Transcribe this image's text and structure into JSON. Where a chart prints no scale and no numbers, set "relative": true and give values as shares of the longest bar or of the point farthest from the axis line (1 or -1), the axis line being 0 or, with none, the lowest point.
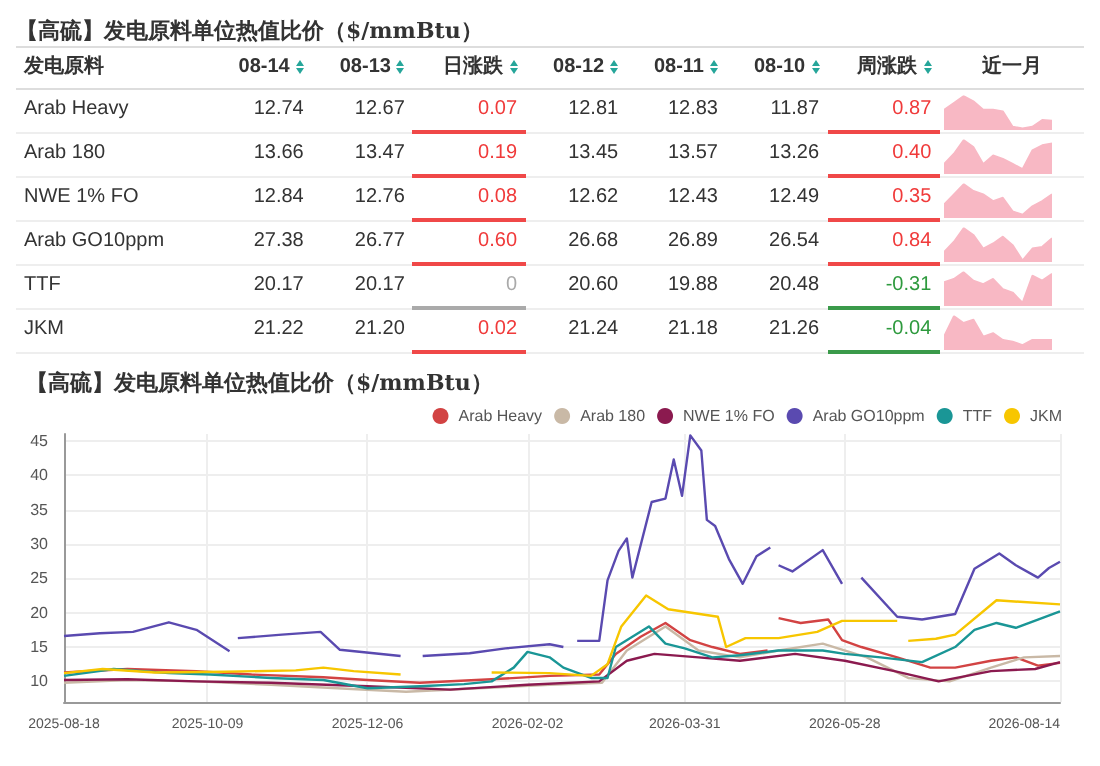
{
  "chart_data": [
    {
      "type": "other",
      "title": "【高硫】发电原料单位热值比价（$/mmBtu）",
      "categories": [
        "发电原料",
        "08-14",
        "08-13",
        "日涨跌",
        "08-12",
        "08-11",
        "08-10",
        "周涨跌",
        "近一月"
      ],
      "y_categories": [
        "Arab Heavy",
        "Arab 180",
        "NWE 1% FO",
        "Arab GO10ppm",
        "TTF",
        "JKM"
      ],
      "cell_labels": [
        [
          "12.74",
          "12.67",
          "0.07",
          "12.81",
          "12.83",
          "11.87",
          "0.87"
        ],
        [
          "13.66",
          "13.47",
          "0.19",
          "13.45",
          "13.57",
          "13.26",
          "0.40"
        ],
        [
          "12.84",
          "12.76",
          "0.08",
          "12.62",
          "12.43",
          "12.49",
          "0.35"
        ],
        [
          "27.38",
          "26.77",
          "0.60",
          "26.68",
          "26.89",
          "26.54",
          "0.84"
        ],
        [
          "20.17",
          "20.17",
          "0",
          "20.60",
          "19.88",
          "20.48",
          "-0.31"
        ],
        [
          "21.22",
          "21.20",
          "0.02",
          "21.24",
          "21.18",
          "21.26",
          "-0.04"
        ]
      ]
    },
    {
      "type": "area",
      "relative": true,
      "color": "#f8b8c4",
      "categories": [
        null,
        null,
        null,
        null,
        null,
        null,
        null,
        null,
        null,
        null,
        null,
        null
      ],
      "values": [
        0.6,
        0.8,
        1,
        0.85,
        0.6,
        0.6,
        0.55,
        0.1,
        0.05,
        0.1,
        0.3,
        0.28
      ]
    },
    {
      "type": "area",
      "relative": true,
      "color": "#f8b8c4",
      "categories": [
        null,
        null,
        null,
        null,
        null,
        null,
        null,
        null,
        null,
        null,
        null,
        null
      ],
      "values": [
        0.3,
        0.6,
        1,
        0.8,
        0.3,
        0.55,
        0.45,
        0.3,
        0.15,
        0.7,
        0.85,
        0.9
      ]
    },
    {
      "type": "area",
      "relative": true,
      "color": "#f8b8c4",
      "categories": [
        null,
        null,
        null,
        null,
        null,
        null,
        null,
        null,
        null,
        null,
        null,
        null
      ],
      "values": [
        0.4,
        0.7,
        1,
        0.8,
        0.7,
        0.5,
        0.6,
        0.2,
        0.1,
        0.35,
        0.5,
        0.7
      ]
    },
    {
      "type": "area",
      "relative": true,
      "color": "#f8b8c4",
      "categories": [
        null,
        null,
        null,
        null,
        null,
        null,
        null,
        null,
        null,
        null,
        null,
        null
      ],
      "values": [
        0.3,
        0.6,
        1,
        0.8,
        0.4,
        0.55,
        0.75,
        0.5,
        0.05,
        0.4,
        0.45,
        0.7
      ]
    },
    {
      "type": "area",
      "relative": true,
      "color": "#f8b8c4",
      "categories": [
        null,
        null,
        null,
        null,
        null,
        null,
        null,
        null,
        null,
        null,
        null,
        null
      ],
      "values": [
        0.7,
        0.8,
        1,
        0.75,
        0.65,
        0.8,
        0.5,
        0.4,
        0.1,
        0.9,
        0.75,
        0.95
      ]
    },
    {
      "type": "area",
      "relative": true,
      "color": "#f8b8c4",
      "categories": [
        null,
        null,
        null,
        null,
        null,
        null,
        null,
        null,
        null,
        null,
        null,
        null
      ],
      "values": [
        0.4,
        1,
        0.8,
        0.9,
        0.4,
        0.5,
        0.3,
        0.25,
        0.15,
        0.3,
        0.3,
        0.3
      ]
    },
    {
      "type": "line",
      "title": "【高硫】发电原料单位热值比价（$/mmBtu）",
      "xlim": [
        "2025-08-18",
        "2026-08-14"
      ],
      "xticks": [
        "2025-08-18",
        "2025-10-09",
        "2025-12-06",
        "2026-02-02",
        "2026-03-31",
        "2026-05-28",
        "2026-08-14"
      ],
      "ylim": [
        7,
        46
      ],
      "yticks": [
        10,
        15,
        20,
        25,
        30,
        35,
        40,
        45
      ],
      "grid": true,
      "legend": "top right",
      "marker": "none",
      "line_style": "solid",
      "series": [
        {
          "name": "Arab Heavy",
          "color": "#d24343",
          "x": [
            "2025-08-18",
            "2025-09-10",
            "2025-10-05",
            "2025-10-25",
            "2025-11-20",
            "2025-12-06",
            "2025-12-25",
            "2026-01-20",
            "2026-02-10",
            "2026-02-28",
            "2026-03-06",
            "2026-03-15",
            "2026-03-24",
            "2026-04-02",
            "2026-04-10",
            "2026-04-20",
            "2026-04-30",
            "2026-05-02",
            "2026-05-04",
            "2026-05-12",
            "2026-05-22",
            "2026-05-27",
            "2026-06-03",
            "2026-06-16",
            "2026-06-28",
            "2026-07-07",
            "2026-07-20",
            "2026-07-29",
            "2026-08-06",
            "2026-08-14"
          ],
          "values": [
            11.3,
            11.8,
            11.5,
            11.0,
            10.6,
            10.2,
            9.8,
            10.3,
            10.8,
            11.0,
            14.0,
            16.5,
            18.5,
            16.0,
            15.0,
            14.0,
            14.5,
            null,
            19.2,
            18.5,
            19.0,
            16.0,
            15.0,
            13.5,
            12.0,
            12.0,
            13.0,
            13.5,
            12.3,
            12.7
          ]
        },
        {
          "name": "Arab 180",
          "color": "#c9b9a6",
          "x": [
            "2025-08-18",
            "2025-09-10",
            "2025-10-05",
            "2025-11-01",
            "2025-11-25",
            "2025-12-20",
            "2026-01-15",
            "2026-02-10",
            "2026-03-01",
            "2026-03-10",
            "2026-03-24",
            "2026-04-05",
            "2026-04-20",
            "2026-05-04",
            "2026-05-20",
            "2026-06-05",
            "2026-06-20",
            "2026-07-05",
            "2026-07-20",
            "2026-08-01",
            "2026-08-14"
          ],
          "values": [
            9.8,
            10.2,
            10.0,
            9.5,
            9.0,
            8.5,
            9.0,
            9.5,
            9.8,
            14.5,
            18.0,
            14.5,
            13.5,
            14.5,
            15.5,
            13.5,
            10.5,
            10.0,
            12.0,
            13.5,
            13.7
          ]
        },
        {
          "name": "NWE 1% FO",
          "color": "#8b1a4f",
          "x": [
            "2025-08-18",
            "2025-09-10",
            "2025-10-05",
            "2025-11-01",
            "2025-12-06",
            "2026-01-05",
            "2026-02-02",
            "2026-02-28",
            "2026-03-10",
            "2026-03-20",
            "2026-04-05",
            "2026-04-20",
            "2026-05-10",
            "2026-05-28",
            "2026-06-15",
            "2026-07-01",
            "2026-07-20",
            "2026-08-05",
            "2026-08-14"
          ],
          "values": [
            10.2,
            10.3,
            10.0,
            9.8,
            9.3,
            8.8,
            9.5,
            10.0,
            13.0,
            14.0,
            13.5,
            13.0,
            14.0,
            13.0,
            11.5,
            10.0,
            11.5,
            11.8,
            12.8
          ]
        },
        {
          "name": "Arab GO10ppm",
          "color": "#5a4ab0",
          "x": [
            "2025-08-18",
            "2025-08-31",
            "2025-09-12",
            "2025-09-25",
            "2025-10-05",
            "2025-10-17",
            "2025-10-19",
            "2025-10-20",
            "2025-11-05",
            "2025-11-19",
            "2025-11-26",
            "2025-12-18",
            "2025-12-22",
            "2025-12-26",
            "2026-01-12",
            "2026-01-25",
            "2026-02-10",
            "2026-02-15",
            "2026-02-18",
            "2026-02-20",
            "2026-02-28",
            "2026-03-03",
            "2026-03-07",
            "2026-03-10",
            "2026-03-12",
            "2026-03-19",
            "2026-03-24",
            "2026-03-27",
            "2026-03-30",
            "2026-04-02",
            "2026-04-06",
            "2026-04-08",
            "2026-04-11",
            "2026-04-16",
            "2026-04-21",
            "2026-04-26",
            "2026-05-01",
            "2026-05-02",
            "2026-05-04",
            "2026-05-09",
            "2026-05-20",
            "2026-05-27",
            "2026-05-30",
            "2026-06-03",
            "2026-06-16",
            "2026-06-25",
            "2026-07-07",
            "2026-07-14",
            "2026-07-23",
            "2026-07-29",
            "2026-08-06",
            "2026-08-10",
            "2026-08-14"
          ],
          "values": [
            16.6,
            17.0,
            17.2,
            18.6,
            17.5,
            14.4,
            null,
            16.3,
            16.8,
            17.2,
            14.6,
            13.7,
            null,
            13.7,
            14.1,
            14.8,
            15.4,
            15.0,
            null,
            15.9,
            15.9,
            24.7,
            29.0,
            30.8,
            25.1,
            36.1,
            36.6,
            42.3,
            37.0,
            45.8,
            43.6,
            33.5,
            32.6,
            27.8,
            24.2,
            28.2,
            29.5,
            null,
            26.9,
            26.0,
            29.1,
            24.2,
            null,
            25.1,
            19.4,
            19.0,
            19.8,
            26.4,
            28.6,
            26.9,
            25.1,
            26.5,
            27.4
          ]
        },
        {
          "name": "TTF",
          "color": "#1a9696",
          "x": [
            "2025-08-18",
            "2025-09-05",
            "2025-09-25",
            "2025-10-10",
            "2025-11-01",
            "2025-11-20",
            "2025-12-06",
            "2025-12-25",
            "2026-01-10",
            "2026-01-20",
            "2026-01-28",
            "2026-02-02",
            "2026-02-10",
            "2026-02-15",
            "2026-02-25",
            "2026-03-03",
            "2026-03-06",
            "2026-03-12",
            "2026-03-18",
            "2026-03-24",
            "2026-03-31",
            "2026-04-10",
            "2026-04-20",
            "2026-05-04",
            "2026-05-20",
            "2026-05-28",
            "2026-06-10",
            "2026-06-25",
            "2026-07-07",
            "2026-07-14",
            "2026-07-22",
            "2026-07-29",
            "2026-08-06",
            "2026-08-14"
          ],
          "values": [
            10.8,
            11.8,
            11.2,
            11.0,
            10.5,
            10.2,
            9.0,
            9.3,
            9.6,
            10.0,
            12.0,
            14.3,
            13.5,
            12.0,
            10.5,
            10.5,
            15.0,
            16.5,
            18.0,
            15.5,
            14.8,
            13.5,
            13.8,
            14.5,
            14.5,
            14.0,
            13.5,
            12.8,
            15.0,
            17.5,
            18.5,
            17.8,
            19.0,
            20.2
          ]
        },
        {
          "name": "JKM",
          "color": "#f7c600",
          "x": [
            "2025-08-18",
            "2025-09-01",
            "2025-09-20",
            "2025-10-15",
            "2025-11-10",
            "2025-11-20",
            "2025-12-01",
            "2025-12-18",
            "2025-12-20",
            "2026-01-20",
            "2026-02-10",
            "2026-02-25",
            "2026-03-03",
            "2026-03-08",
            "2026-03-17",
            "2026-03-25",
            "2026-04-12",
            "2026-04-15",
            "2026-04-22",
            "2026-05-04",
            "2026-05-18",
            "2026-05-27",
            "2026-06-16",
            "2026-06-18",
            "2026-06-20",
            "2026-06-30",
            "2026-07-07",
            "2026-07-22",
            "2026-08-14"
          ],
          "values": [
            11.2,
            11.8,
            11.3,
            11.4,
            11.6,
            12.0,
            11.5,
            11.0,
            null,
            11.3,
            11.2,
            10.8,
            12.5,
            18.0,
            22.5,
            20.5,
            19.4,
            15.0,
            16.3,
            16.3,
            17.2,
            18.8,
            18.8,
            null,
            15.9,
            16.2,
            16.8,
            21.8,
            21.2
          ]
        }
      ]
    }
  ]
}
